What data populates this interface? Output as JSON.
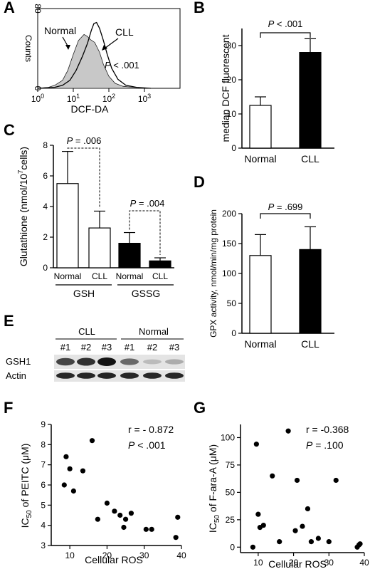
{
  "chart_data": [
    {
      "panel": "A",
      "type": "area",
      "xlabel": "DCF-DA",
      "ylabel": "Counts",
      "x_scale": "log",
      "xlim": [
        1,
        10000
      ],
      "ylim": [
        0,
        80
      ],
      "xticks": [
        "10^0",
        "10^1",
        "10^2",
        "10^3"
      ],
      "yticks": [
        "0",
        "80"
      ],
      "series": [
        {
          "name": "Normal",
          "fill": "#c8c8c8",
          "x": [
            1,
            2,
            3,
            5,
            7,
            10,
            14,
            20,
            25,
            30,
            40,
            55,
            70,
            100,
            150,
            250,
            500,
            1000
          ],
          "y": [
            0,
            1,
            3,
            8,
            18,
            34,
            48,
            54,
            52,
            49,
            46,
            36,
            24,
            12,
            5,
            2,
            1,
            0
          ]
        },
        {
          "name": "CLL",
          "fill": "none",
          "x": [
            1,
            3,
            5,
            8,
            12,
            18,
            25,
            32,
            38,
            45,
            55,
            70,
            90,
            120,
            180,
            300,
            600,
            1500
          ],
          "y": [
            0,
            1,
            3,
            8,
            18,
            32,
            45,
            58,
            65,
            66,
            60,
            48,
            34,
            20,
            9,
            3,
            1,
            0
          ]
        }
      ],
      "annotations": [
        "Normal",
        "CLL",
        "P < .001"
      ]
    },
    {
      "panel": "B",
      "type": "bar",
      "categories": [
        "Normal",
        "CLL"
      ],
      "values": [
        12.5,
        28
      ],
      "errors": [
        2.5,
        4
      ],
      "colors": [
        "#ffffff",
        "#000000"
      ],
      "ylabel": "median DCF fluorescent",
      "ylim": [
        0,
        35
      ],
      "yticks": [
        0,
        10,
        20,
        30
      ],
      "annotation": "P < .001"
    },
    {
      "panel": "C",
      "type": "bar",
      "categories": [
        "Normal",
        "CLL",
        "Normal",
        "CLL"
      ],
      "groups": [
        "GSH",
        "GSSG"
      ],
      "values": [
        5.5,
        2.6,
        1.6,
        0.45
      ],
      "errors": [
        2.1,
        1.1,
        0.7,
        0.2
      ],
      "colors": [
        "#ffffff",
        "#ffffff",
        "#000000",
        "#000000"
      ],
      "ylabel_main": "Glutathione (nmol/10",
      "ylabel_sup": "7",
      "ylabel_end": "cells)",
      "ylim": [
        0,
        8
      ],
      "yticks": [
        0,
        2,
        4,
        6,
        8
      ],
      "annotations": [
        "P = .006",
        "P = .004"
      ]
    },
    {
      "panel": "D",
      "type": "bar",
      "categories": [
        "Normal",
        "CLL"
      ],
      "values": [
        130,
        140
      ],
      "errors": [
        35,
        38
      ],
      "colors": [
        "#ffffff",
        "#000000"
      ],
      "ylabel": "GPX activity, nmol/min/mg protein",
      "ylim": [
        0,
        200
      ],
      "yticks": [
        0,
        50,
        100,
        150,
        200
      ],
      "annotation": "P = .699"
    },
    {
      "panel": "F",
      "type": "scatter",
      "x": [
        8.5,
        9,
        10,
        11,
        13.5,
        16,
        17.5,
        20,
        22,
        23.5,
        24.5,
        25,
        26.5,
        30.5,
        32,
        38.5,
        39
      ],
      "y": [
        6.0,
        7.4,
        6.8,
        5.7,
        6.7,
        8.2,
        4.3,
        5.1,
        4.7,
        4.5,
        3.9,
        4.3,
        4.6,
        3.8,
        3.8,
        3.4,
        4.4
      ],
      "xlabel": "Cellular ROS",
      "ylabel_pre": "IC",
      "ylabel_sub": "50",
      "ylabel_post": " of PEITC (μM)",
      "xlim": [
        5,
        40
      ],
      "ylim": [
        3,
        9
      ],
      "xticks": [
        10,
        20,
        30,
        40
      ],
      "yticks": [
        3,
        4,
        5,
        6,
        7,
        8,
        9
      ],
      "annotations": [
        "r = - 0.872",
        "P < .001"
      ]
    },
    {
      "panel": "G",
      "type": "scatter",
      "x": [
        8.5,
        9.5,
        10,
        10.5,
        11.5,
        14,
        16,
        18.5,
        20.5,
        21,
        22.5,
        24,
        25,
        27,
        30,
        32,
        38,
        38.5,
        38.8
      ],
      "y": [
        0,
        94,
        30,
        18,
        20,
        65,
        5,
        106,
        15,
        61,
        19,
        35,
        5,
        8,
        5,
        61,
        0,
        2,
        3
      ],
      "xlabel": "Cellular ROS",
      "ylabel_pre": "IC",
      "ylabel_sub": "50",
      "ylabel_post": " of F-ara-A (μM)",
      "xlim": [
        5,
        40
      ],
      "ylim": [
        -5,
        112
      ],
      "xticks": [
        10,
        20,
        30,
        40
      ],
      "yticks": [
        0,
        25,
        50,
        75,
        100
      ],
      "annotations": [
        "r = -0.368",
        "P = .100"
      ]
    }
  ],
  "panel_labels": [
    "A",
    "B",
    "C",
    "D",
    "E",
    "F",
    "G"
  ],
  "blot": {
    "groups": [
      "CLL",
      "Normal"
    ],
    "lanes": [
      "#1",
      "#2",
      "#3",
      "#1",
      "#2",
      "#3"
    ],
    "rows": [
      {
        "label": "GSH1",
        "intensity": [
          0.75,
          0.85,
          1.0,
          0.55,
          0.12,
          0.2
        ]
      },
      {
        "label": "Actin",
        "intensity": [
          0.9,
          0.9,
          0.92,
          0.9,
          0.9,
          0.9
        ]
      }
    ]
  }
}
